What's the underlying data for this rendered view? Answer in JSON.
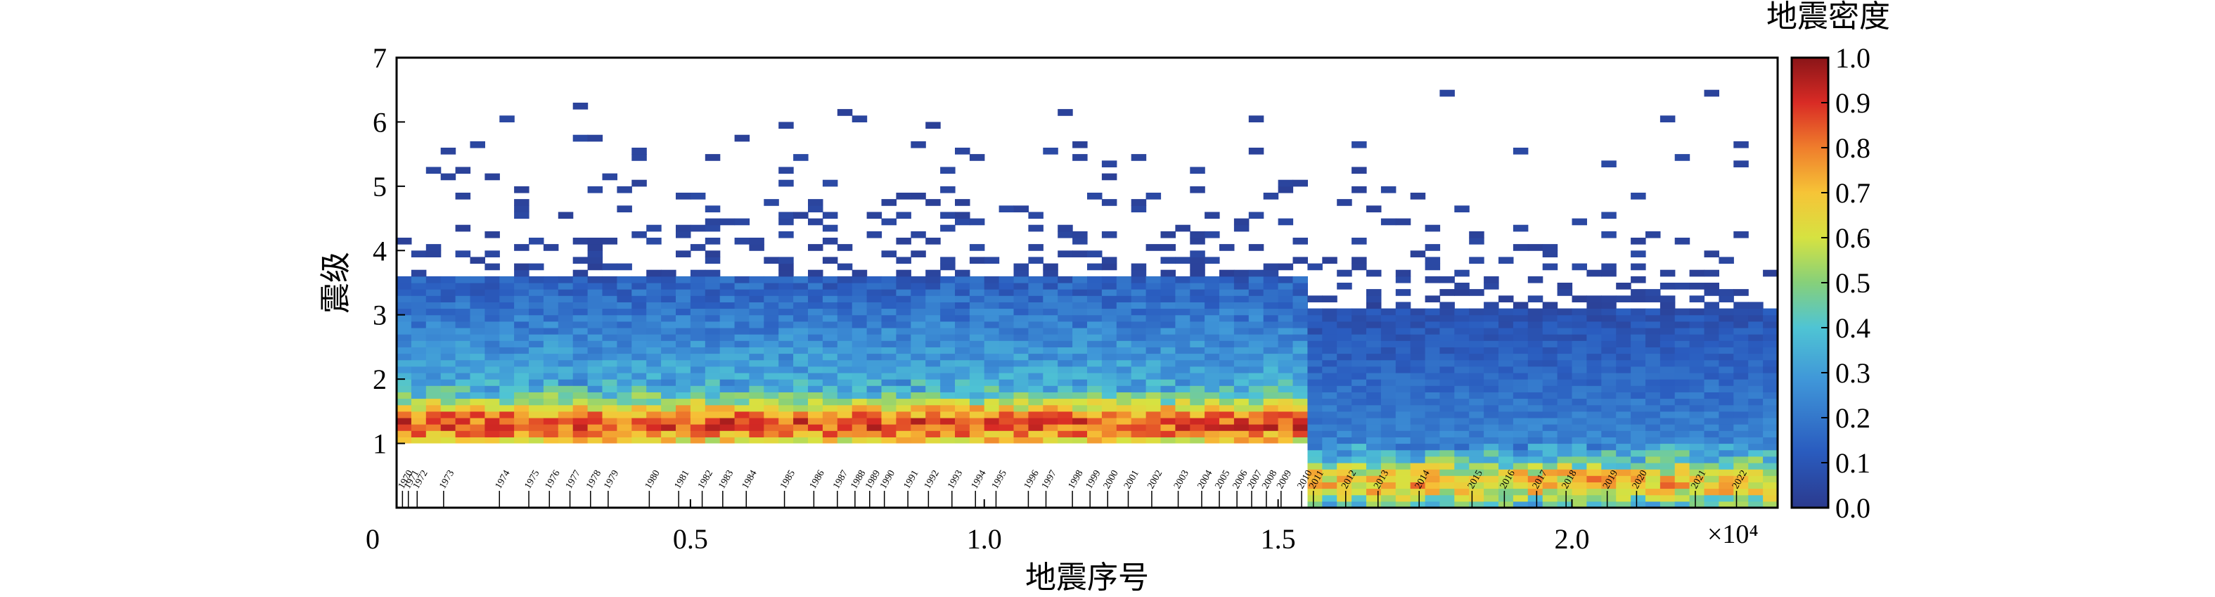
{
  "chart_data": {
    "type": "heatmap",
    "xlabel": "地震序号",
    "ylabel": "震级",
    "x_multiplier": "×10⁴",
    "xlim": [
      0,
      23500
    ],
    "ylim": [
      0,
      7
    ],
    "x_ticks": [
      0,
      5000,
      10000,
      15000,
      20000
    ],
    "x_tick_labels": [
      "0",
      "0.5",
      "1.0",
      "1.5",
      "2.0"
    ],
    "y_ticks": [
      1,
      2,
      3,
      4,
      5,
      6,
      7
    ],
    "y_tick_labels": [
      "1",
      "2",
      "3",
      "4",
      "5",
      "6",
      "7"
    ],
    "grid": false,
    "colorbar": {
      "title": "地震密度",
      "range": [
        0.0,
        1.0
      ],
      "ticks": [
        0.0,
        0.1,
        0.2,
        0.3,
        0.4,
        0.5,
        0.6,
        0.7,
        0.8,
        0.9,
        1.0
      ],
      "tick_labels": [
        "0.0",
        "0.1",
        "0.2",
        "0.3",
        "0.4",
        "0.5",
        "0.6",
        "0.7",
        "0.8",
        "0.9",
        "1.0"
      ],
      "colormap": "jet",
      "position": "right"
    },
    "magnitude_threshold_change": {
      "at_index": 15500,
      "before_min_magnitude": 1.0,
      "after_min_magnitude": 0.0
    },
    "regions": [
      {
        "x": [
          0,
          6000
        ],
        "y": [
          1.0,
          2.0
        ],
        "density": [
          0.45,
          0.95
        ],
        "note": "dense band"
      },
      {
        "x": [
          6000,
          15500
        ],
        "y": [
          1.0,
          2.0
        ],
        "density": [
          0.35,
          0.9
        ]
      },
      {
        "x": [
          15500,
          23500
        ],
        "y": [
          0.0,
          1.0
        ],
        "density": [
          0.35,
          0.85
        ]
      },
      {
        "x": [
          0,
          23500
        ],
        "y": [
          2.0,
          3.6
        ],
        "density": [
          0.1,
          0.35
        ]
      },
      {
        "x": [
          0,
          23500
        ],
        "y": [
          3.6,
          6.5
        ],
        "density": [
          0.0,
          0.08
        ],
        "note": "sparse"
      }
    ],
    "year_markers": [
      {
        "label": "1970",
        "x": 100
      },
      {
        "label": "1971",
        "x": 200
      },
      {
        "label": "1972",
        "x": 350
      },
      {
        "label": "1973",
        "x": 800
      },
      {
        "label": "1974",
        "x": 1750
      },
      {
        "label": "1975",
        "x": 2250
      },
      {
        "label": "1976",
        "x": 2600
      },
      {
        "label": "1977",
        "x": 2950
      },
      {
        "label": "1978",
        "x": 3300
      },
      {
        "label": "1979",
        "x": 3600
      },
      {
        "label": "1980",
        "x": 4300
      },
      {
        "label": "1981",
        "x": 4800
      },
      {
        "label": "1982",
        "x": 5200
      },
      {
        "label": "1983",
        "x": 5550
      },
      {
        "label": "1984",
        "x": 5950
      },
      {
        "label": "1985",
        "x": 6600
      },
      {
        "label": "1986",
        "x": 7100
      },
      {
        "label": "1987",
        "x": 7500
      },
      {
        "label": "1988",
        "x": 7800
      },
      {
        "label": "1989",
        "x": 8050
      },
      {
        "label": "1990",
        "x": 8300
      },
      {
        "label": "1991",
        "x": 8700
      },
      {
        "label": "1992",
        "x": 9050
      },
      {
        "label": "1993",
        "x": 9450
      },
      {
        "label": "1994",
        "x": 9850
      },
      {
        "label": "1995",
        "x": 10200
      },
      {
        "label": "1996",
        "x": 10750
      },
      {
        "label": "1997",
        "x": 11050
      },
      {
        "label": "1998",
        "x": 11500
      },
      {
        "label": "1999",
        "x": 11800
      },
      {
        "label": "2000",
        "x": 12100
      },
      {
        "label": "2001",
        "x": 12450
      },
      {
        "label": "2002",
        "x": 12850
      },
      {
        "label": "2003",
        "x": 13300
      },
      {
        "label": "2004",
        "x": 13700
      },
      {
        "label": "2005",
        "x": 14000
      },
      {
        "label": "2006",
        "x": 14300
      },
      {
        "label": "2007",
        "x": 14550
      },
      {
        "label": "2008",
        "x": 14800
      },
      {
        "label": "2009",
        "x": 15050
      },
      {
        "label": "2010",
        "x": 15400
      },
      {
        "label": "2011",
        "x": 15600
      },
      {
        "label": "2012",
        "x": 16150
      },
      {
        "label": "2013",
        "x": 16700
      },
      {
        "label": "2014",
        "x": 17400
      },
      {
        "label": "2015",
        "x": 18300
      },
      {
        "label": "2016",
        "x": 18850
      },
      {
        "label": "2017",
        "x": 19400
      },
      {
        "label": "2018",
        "x": 19900
      },
      {
        "label": "2019",
        "x": 20600
      },
      {
        "label": "2020",
        "x": 21100
      },
      {
        "label": "2021",
        "x": 22100
      },
      {
        "label": "2022",
        "x": 22800
      }
    ]
  }
}
